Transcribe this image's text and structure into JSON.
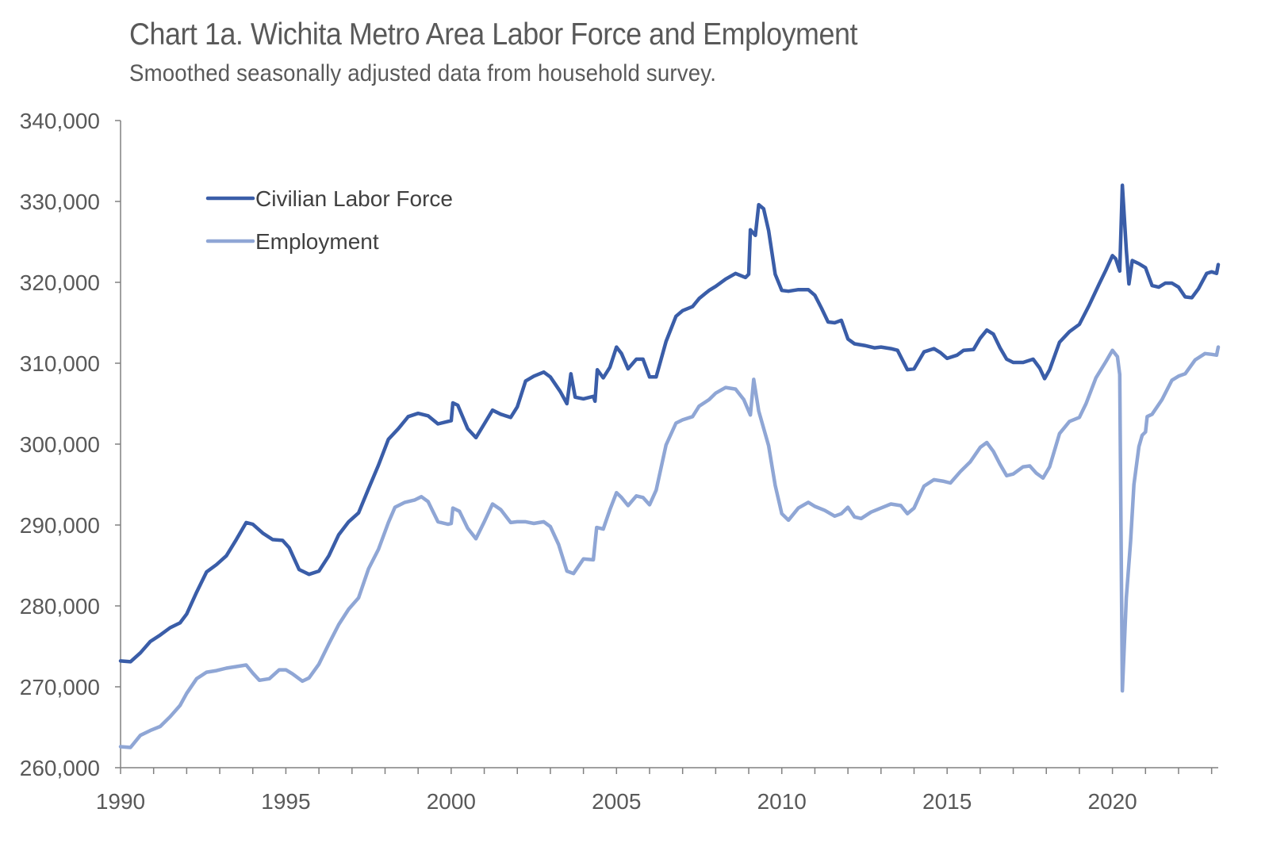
{
  "title": "Chart 1a. Wichita Metro Area Labor Force and Employment",
  "subtitle": "Smoothed seasonally adjusted data from household survey.",
  "chart_data": {
    "type": "line",
    "title": "Chart 1a. Wichita Metro Area Labor Force and Employment",
    "subtitle": "Smoothed seasonally adjusted data from household survey.",
    "xlabel": "",
    "ylabel": "",
    "xlim": [
      1990,
      2023.2
    ],
    "ylim": [
      260000,
      340000
    ],
    "x_ticks": [
      1990,
      1995,
      2000,
      2005,
      2010,
      2015,
      2020
    ],
    "x_tick_labels": [
      "1990",
      "1995",
      "2000",
      "2005",
      "2010",
      "2015",
      "2020"
    ],
    "y_ticks": [
      260000,
      270000,
      280000,
      290000,
      300000,
      310000,
      320000,
      330000,
      340000
    ],
    "y_tick_labels": [
      "260,000",
      "270,000",
      "280,000",
      "290,000",
      "300,000",
      "310,000",
      "320,000",
      "330,000",
      "340,000"
    ],
    "grid": false,
    "legend_position": "top-left",
    "series": [
      {
        "name": "Civilian Labor Force",
        "color": "#3a5da8",
        "points": [
          [
            1990.0,
            273200
          ],
          [
            1990.3,
            273100
          ],
          [
            1990.6,
            274200
          ],
          [
            1990.9,
            275600
          ],
          [
            1991.2,
            276400
          ],
          [
            1991.5,
            277300
          ],
          [
            1991.8,
            277900
          ],
          [
            1992.0,
            279000
          ],
          [
            1992.3,
            281700
          ],
          [
            1992.6,
            284200
          ],
          [
            1992.9,
            285100
          ],
          [
            1993.2,
            286200
          ],
          [
            1993.5,
            288200
          ],
          [
            1993.8,
            290300
          ],
          [
            1994.0,
            290100
          ],
          [
            1994.3,
            289000
          ],
          [
            1994.6,
            288200
          ],
          [
            1994.9,
            288100
          ],
          [
            1995.1,
            287200
          ],
          [
            1995.4,
            284500
          ],
          [
            1995.7,
            283900
          ],
          [
            1996.0,
            284300
          ],
          [
            1996.3,
            286200
          ],
          [
            1996.6,
            288800
          ],
          [
            1996.9,
            290400
          ],
          [
            1997.2,
            291500
          ],
          [
            1997.5,
            294500
          ],
          [
            1997.8,
            297400
          ],
          [
            1998.1,
            300600
          ],
          [
            1998.4,
            301900
          ],
          [
            1998.7,
            303400
          ],
          [
            1999.0,
            303800
          ],
          [
            1999.3,
            303500
          ],
          [
            1999.6,
            302500
          ],
          [
            1999.9,
            302800
          ],
          [
            2000.0,
            302900
          ],
          [
            2000.05,
            305100
          ],
          [
            2000.2,
            304800
          ],
          [
            2000.5,
            301900
          ],
          [
            2000.75,
            300800
          ],
          [
            2001.0,
            302500
          ],
          [
            2001.25,
            304200
          ],
          [
            2001.5,
            303700
          ],
          [
            2001.8,
            303300
          ],
          [
            2002.0,
            304600
          ],
          [
            2002.25,
            307800
          ],
          [
            2002.5,
            308400
          ],
          [
            2002.8,
            308900
          ],
          [
            2003.0,
            308300
          ],
          [
            2003.3,
            306500
          ],
          [
            2003.5,
            305000
          ],
          [
            2003.62,
            308700
          ],
          [
            2003.75,
            305800
          ],
          [
            2004.0,
            305600
          ],
          [
            2004.3,
            305900
          ],
          [
            2004.35,
            305300
          ],
          [
            2004.42,
            309200
          ],
          [
            2004.6,
            308200
          ],
          [
            2004.8,
            309500
          ],
          [
            2005.0,
            312000
          ],
          [
            2005.15,
            311200
          ],
          [
            2005.35,
            309300
          ],
          [
            2005.6,
            310500
          ],
          [
            2005.8,
            310500
          ],
          [
            2006.0,
            308300
          ],
          [
            2006.2,
            308300
          ],
          [
            2006.5,
            312700
          ],
          [
            2006.8,
            315800
          ],
          [
            2007.0,
            316500
          ],
          [
            2007.3,
            317000
          ],
          [
            2007.5,
            318000
          ],
          [
            2007.8,
            319000
          ],
          [
            2008.0,
            319500
          ],
          [
            2008.3,
            320400
          ],
          [
            2008.6,
            321100
          ],
          [
            2008.9,
            320600
          ],
          [
            2009.0,
            321000
          ],
          [
            2009.05,
            326500
          ],
          [
            2009.2,
            325800
          ],
          [
            2009.3,
            329600
          ],
          [
            2009.45,
            329100
          ],
          [
            2009.6,
            326400
          ],
          [
            2009.8,
            321000
          ],
          [
            2010.0,
            319000
          ],
          [
            2010.2,
            318900
          ],
          [
            2010.5,
            319100
          ],
          [
            2010.8,
            319100
          ],
          [
            2011.0,
            318400
          ],
          [
            2011.2,
            316800
          ],
          [
            2011.4,
            315100
          ],
          [
            2011.6,
            315000
          ],
          [
            2011.8,
            315300
          ],
          [
            2012.0,
            313000
          ],
          [
            2012.2,
            312400
          ],
          [
            2012.5,
            312200
          ],
          [
            2012.8,
            311900
          ],
          [
            2013.0,
            312000
          ],
          [
            2013.3,
            311800
          ],
          [
            2013.5,
            311600
          ],
          [
            2013.8,
            309200
          ],
          [
            2014.0,
            309300
          ],
          [
            2014.3,
            311400
          ],
          [
            2014.6,
            311800
          ],
          [
            2014.8,
            311300
          ],
          [
            2015.0,
            310600
          ],
          [
            2015.3,
            311000
          ],
          [
            2015.5,
            311600
          ],
          [
            2015.8,
            311700
          ],
          [
            2016.0,
            313100
          ],
          [
            2016.2,
            314100
          ],
          [
            2016.4,
            313600
          ],
          [
            2016.6,
            311900
          ],
          [
            2016.8,
            310500
          ],
          [
            2017.0,
            310100
          ],
          [
            2017.3,
            310100
          ],
          [
            2017.6,
            310500
          ],
          [
            2017.8,
            309400
          ],
          [
            2017.95,
            308100
          ],
          [
            2018.1,
            309200
          ],
          [
            2018.4,
            312600
          ],
          [
            2018.7,
            313900
          ],
          [
            2019.0,
            314800
          ],
          [
            2019.3,
            317200
          ],
          [
            2019.6,
            319800
          ],
          [
            2019.8,
            321500
          ],
          [
            2020.0,
            323300
          ],
          [
            2020.1,
            322900
          ],
          [
            2020.22,
            321400
          ],
          [
            2020.3,
            332000
          ],
          [
            2020.42,
            324000
          ],
          [
            2020.5,
            319800
          ],
          [
            2020.6,
            322700
          ],
          [
            2020.8,
            322300
          ],
          [
            2021.0,
            321800
          ],
          [
            2021.2,
            319600
          ],
          [
            2021.4,
            319400
          ],
          [
            2021.6,
            319900
          ],
          [
            2021.8,
            319900
          ],
          [
            2022.0,
            319400
          ],
          [
            2022.2,
            318200
          ],
          [
            2022.4,
            318100
          ],
          [
            2022.6,
            319200
          ],
          [
            2022.85,
            321100
          ],
          [
            2023.0,
            321300
          ],
          [
            2023.15,
            321100
          ],
          [
            2023.2,
            322200
          ]
        ]
      },
      {
        "name": "Employment",
        "color": "#8fa6d5",
        "points": [
          [
            1990.0,
            262600
          ],
          [
            1990.3,
            262500
          ],
          [
            1990.6,
            264000
          ],
          [
            1990.9,
            264600
          ],
          [
            1991.2,
            265100
          ],
          [
            1991.5,
            266300
          ],
          [
            1991.8,
            267700
          ],
          [
            1992.0,
            269200
          ],
          [
            1992.3,
            271000
          ],
          [
            1992.6,
            271800
          ],
          [
            1992.9,
            272000
          ],
          [
            1993.2,
            272300
          ],
          [
            1993.5,
            272500
          ],
          [
            1993.8,
            272700
          ],
          [
            1994.0,
            271700
          ],
          [
            1994.2,
            270800
          ],
          [
            1994.5,
            271000
          ],
          [
            1994.8,
            272100
          ],
          [
            1995.0,
            272100
          ],
          [
            1995.2,
            271600
          ],
          [
            1995.5,
            270700
          ],
          [
            1995.7,
            271100
          ],
          [
            1996.0,
            272800
          ],
          [
            1996.3,
            275300
          ],
          [
            1996.6,
            277700
          ],
          [
            1996.9,
            279600
          ],
          [
            1997.2,
            281000
          ],
          [
            1997.5,
            284600
          ],
          [
            1997.8,
            287000
          ],
          [
            1998.1,
            290300
          ],
          [
            1998.3,
            292200
          ],
          [
            1998.6,
            292800
          ],
          [
            1998.9,
            293100
          ],
          [
            1999.1,
            293500
          ],
          [
            1999.3,
            292900
          ],
          [
            1999.6,
            290400
          ],
          [
            1999.9,
            290100
          ],
          [
            2000.0,
            290200
          ],
          [
            2000.05,
            292100
          ],
          [
            2000.25,
            291700
          ],
          [
            2000.5,
            289600
          ],
          [
            2000.75,
            288300
          ],
          [
            2001.0,
            290400
          ],
          [
            2001.25,
            292600
          ],
          [
            2001.5,
            291900
          ],
          [
            2001.8,
            290300
          ],
          [
            2002.0,
            290400
          ],
          [
            2002.25,
            290400
          ],
          [
            2002.5,
            290200
          ],
          [
            2002.8,
            290400
          ],
          [
            2003.0,
            289800
          ],
          [
            2003.25,
            287600
          ],
          [
            2003.5,
            284300
          ],
          [
            2003.7,
            284000
          ],
          [
            2004.0,
            285800
          ],
          [
            2004.3,
            285700
          ],
          [
            2004.4,
            289700
          ],
          [
            2004.6,
            289500
          ],
          [
            2004.8,
            291900
          ],
          [
            2005.0,
            294000
          ],
          [
            2005.15,
            293400
          ],
          [
            2005.35,
            292400
          ],
          [
            2005.6,
            293600
          ],
          [
            2005.8,
            293400
          ],
          [
            2006.0,
            292500
          ],
          [
            2006.2,
            294300
          ],
          [
            2006.5,
            299900
          ],
          [
            2006.8,
            302600
          ],
          [
            2007.0,
            303000
          ],
          [
            2007.3,
            303400
          ],
          [
            2007.5,
            304700
          ],
          [
            2007.8,
            305500
          ],
          [
            2008.0,
            306300
          ],
          [
            2008.3,
            307000
          ],
          [
            2008.6,
            306800
          ],
          [
            2008.85,
            305500
          ],
          [
            2009.05,
            303600
          ],
          [
            2009.15,
            308000
          ],
          [
            2009.3,
            304100
          ],
          [
            2009.6,
            299800
          ],
          [
            2009.8,
            294900
          ],
          [
            2010.0,
            291400
          ],
          [
            2010.2,
            290600
          ],
          [
            2010.5,
            292100
          ],
          [
            2010.8,
            292800
          ],
          [
            2011.0,
            292300
          ],
          [
            2011.3,
            291800
          ],
          [
            2011.6,
            291100
          ],
          [
            2011.8,
            291400
          ],
          [
            2012.0,
            292200
          ],
          [
            2012.2,
            291000
          ],
          [
            2012.4,
            290800
          ],
          [
            2012.7,
            291600
          ],
          [
            2013.0,
            292100
          ],
          [
            2013.3,
            292600
          ],
          [
            2013.6,
            292400
          ],
          [
            2013.8,
            291400
          ],
          [
            2014.0,
            292100
          ],
          [
            2014.3,
            294800
          ],
          [
            2014.6,
            295600
          ],
          [
            2014.9,
            295400
          ],
          [
            2015.1,
            295200
          ],
          [
            2015.4,
            296600
          ],
          [
            2015.7,
            297800
          ],
          [
            2016.0,
            299600
          ],
          [
            2016.2,
            300200
          ],
          [
            2016.4,
            299100
          ],
          [
            2016.6,
            297500
          ],
          [
            2016.8,
            296100
          ],
          [
            2017.0,
            296300
          ],
          [
            2017.3,
            297200
          ],
          [
            2017.5,
            297300
          ],
          [
            2017.7,
            296400
          ],
          [
            2017.9,
            295800
          ],
          [
            2018.1,
            297200
          ],
          [
            2018.4,
            301300
          ],
          [
            2018.7,
            302800
          ],
          [
            2019.0,
            303300
          ],
          [
            2019.2,
            305000
          ],
          [
            2019.5,
            308200
          ],
          [
            2019.8,
            310200
          ],
          [
            2020.0,
            311600
          ],
          [
            2020.15,
            310800
          ],
          [
            2020.22,
            308600
          ],
          [
            2020.3,
            269500
          ],
          [
            2020.42,
            281000
          ],
          [
            2020.55,
            288000
          ],
          [
            2020.65,
            295000
          ],
          [
            2020.8,
            299700
          ],
          [
            2020.9,
            301100
          ],
          [
            2021.0,
            301500
          ],
          [
            2021.05,
            303400
          ],
          [
            2021.2,
            303700
          ],
          [
            2021.5,
            305500
          ],
          [
            2021.8,
            307900
          ],
          [
            2022.0,
            308400
          ],
          [
            2022.2,
            308700
          ],
          [
            2022.5,
            310400
          ],
          [
            2022.8,
            311200
          ],
          [
            2023.0,
            311100
          ],
          [
            2023.15,
            311000
          ],
          [
            2023.2,
            312000
          ]
        ]
      }
    ]
  }
}
